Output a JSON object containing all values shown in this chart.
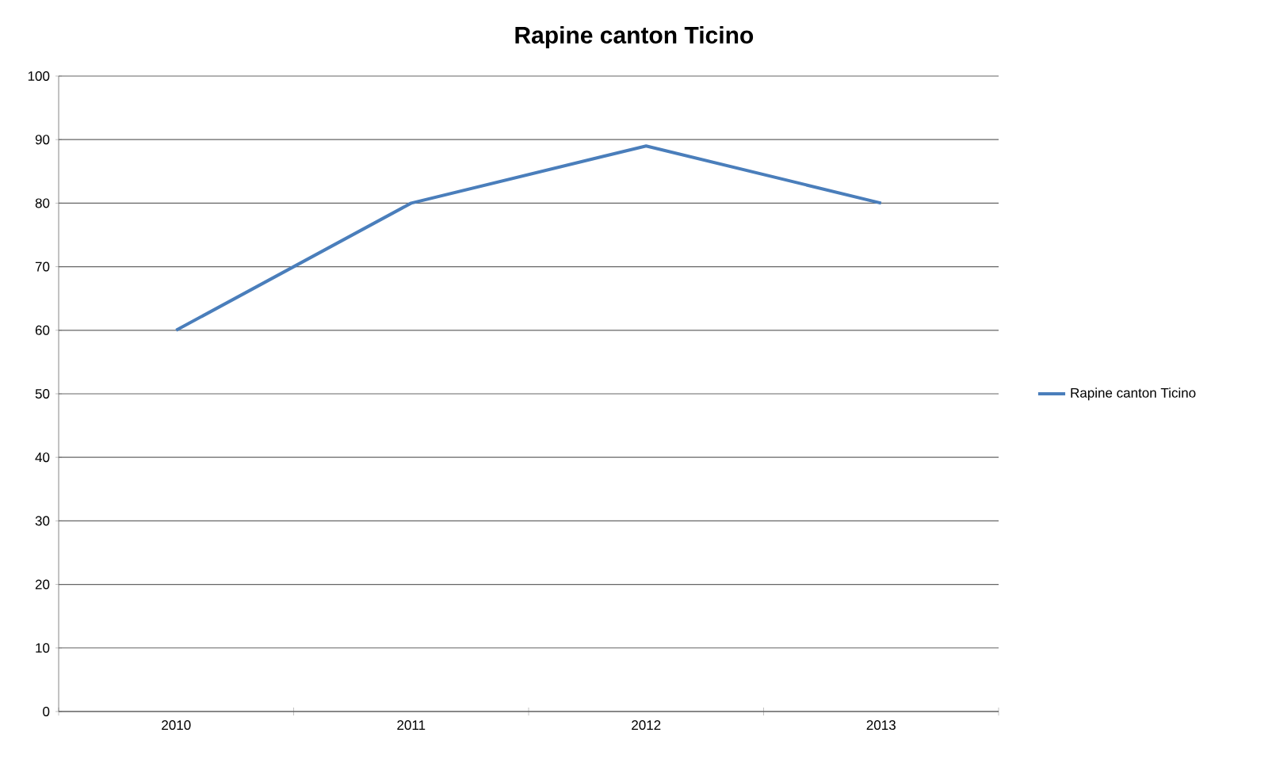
{
  "chart_data": {
    "type": "line",
    "title": "Rapine canton Ticino",
    "categories": [
      "2010",
      "2011",
      "2012",
      "2013"
    ],
    "series": [
      {
        "name": "Rapine canton Ticino",
        "color": "#4a7ebb",
        "values": [
          60,
          80,
          89,
          80
        ]
      }
    ],
    "ylim": [
      0,
      100
    ],
    "yticks": [
      0,
      10,
      20,
      30,
      40,
      50,
      60,
      70,
      80,
      90,
      100
    ],
    "grid": "y",
    "legend": "right",
    "marker": "none",
    "line_style": "solid"
  }
}
